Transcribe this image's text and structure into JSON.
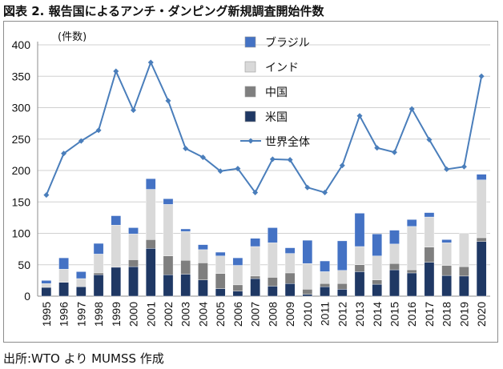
{
  "figure_title": "図表 2.  報告国によるアンチ・ダンピング新規調査開始件数",
  "source_note": "出所:WTO より MUMSS  作成",
  "chart_data": {
    "type": "bar",
    "stacked": true,
    "ylabel": "(件数)",
    "ylim": [
      0,
      400
    ],
    "yticks": [
      0,
      50,
      100,
      150,
      200,
      250,
      300,
      350,
      400
    ],
    "grid": true,
    "legend_position": "top-center",
    "categories": [
      "1995",
      "1996",
      "1997",
      "1998",
      "1999",
      "2000",
      "2001",
      "2002",
      "2003",
      "2004",
      "2005",
      "2006",
      "2007",
      "2008",
      "2009",
      "2010",
      "2011",
      "2012",
      "2013",
      "2014",
      "2015",
      "2016",
      "2017",
      "2018",
      "2019",
      "2020"
    ],
    "series": [
      {
        "name": "米国",
        "color": "#1f3864",
        "values": [
          14,
          22,
          15,
          34,
          46,
          47,
          76,
          34,
          35,
          26,
          12,
          8,
          28,
          16,
          20,
          3,
          15,
          11,
          39,
          19,
          42,
          37,
          54,
          33,
          32,
          87
        ]
      },
      {
        "name": "中国",
        "color": "#7f7f7f",
        "values": [
          0,
          0,
          0,
          3,
          0,
          11,
          14,
          30,
          22,
          27,
          24,
          10,
          4,
          14,
          17,
          8,
          5,
          9,
          11,
          7,
          10,
          5,
          24,
          16,
          15,
          6
        ]
      },
      {
        "name": "インド",
        "color": "#d9d9d9",
        "values": [
          6,
          21,
          13,
          30,
          67,
          41,
          80,
          82,
          46,
          21,
          28,
          31,
          47,
          55,
          31,
          41,
          19,
          21,
          29,
          38,
          31,
          69,
          48,
          36,
          53,
          92
        ]
      },
      {
        "name": "ブラジル",
        "color": "#4472c4",
        "values": [
          5,
          18,
          11,
          17,
          15,
          10,
          17,
          9,
          4,
          8,
          6,
          12,
          13,
          24,
          9,
          37,
          17,
          47,
          53,
          35,
          22,
          11,
          7,
          5,
          0,
          9
        ]
      }
    ],
    "line": {
      "name": "世界全体",
      "color": "#4a7ebb",
      "values": [
        161,
        227,
        247,
        264,
        358,
        296,
        372,
        311,
        235,
        221,
        199,
        203,
        165,
        218,
        217,
        173,
        165,
        208,
        287,
        236,
        229,
        298,
        249,
        202,
        206,
        350
      ]
    }
  }
}
